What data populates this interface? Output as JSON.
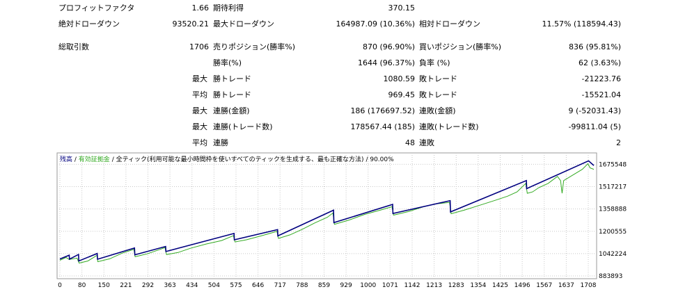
{
  "stats": {
    "profit_factor": {
      "label": "プロフィットファクタ",
      "value": "1.66"
    },
    "expected_payoff": {
      "label": "期待利得",
      "value": "370.15"
    },
    "abs_drawdown": {
      "label": "絶対ドローダウン",
      "value": "93520.21"
    },
    "max_drawdown": {
      "label": "最大ドローダウン",
      "value": "164987.09 (10.36%)"
    },
    "rel_drawdown": {
      "label": "相対ドローダウン",
      "value": "11.57% (118594.43)"
    },
    "total_trades": {
      "label": "総取引数",
      "value": "1706"
    },
    "short_positions": {
      "label": "売りポジション(勝率%)",
      "value": "870 (96.90%)"
    },
    "long_positions": {
      "label": "買いポジション(勝率%)",
      "value": "836 (95.81%)"
    },
    "win_rate": {
      "label": "勝率(%)",
      "value": "1644 (96.37%)"
    },
    "loss_rate": {
      "label": "負率 (%)",
      "value": "62 (3.63%)"
    },
    "max_win": {
      "prefix": "最大",
      "label": "勝トレード",
      "value": "1080.59"
    },
    "max_loss": {
      "label": "敗トレード",
      "value": "-21223.76"
    },
    "avg_win": {
      "prefix": "平均",
      "label": "勝トレード",
      "value": "969.45"
    },
    "avg_loss": {
      "label": "敗トレード",
      "value": "-15521.04"
    },
    "max_consec_wins_amount": {
      "prefix": "最大",
      "label": "連勝(金額)",
      "value": "186 (176697.52)"
    },
    "max_consec_losses_amount": {
      "label": "連敗(金額)",
      "value": "9 (-52031.43)"
    },
    "max_consec_wins_trades": {
      "prefix": "最大",
      "label": "連勝(トレード数)",
      "value": "178567.44 (185)"
    },
    "max_consec_losses_trades": {
      "label": "連敗(トレード数)",
      "value": "-99811.04 (5)"
    },
    "avg_consec_wins": {
      "prefix": "平均",
      "label": "連勝",
      "value": "48"
    },
    "avg_consec_losses": {
      "label": "連敗",
      "value": "2"
    }
  },
  "chart_data": {
    "type": "line",
    "legend": {
      "balance": "残高",
      "sep1": " / ",
      "equity": "有効証拠金",
      "sep2": " / ",
      "mode": "全ティック(利用可能な最小時間枠を使いすべてのティックを生成する、最も正確な方法)",
      "sep3": " / ",
      "quality": "90.00%"
    },
    "x_ticks": [
      "0",
      "80",
      "150",
      "221",
      "292",
      "363",
      "434",
      "504",
      "575",
      "646",
      "717",
      "788",
      "859",
      "929",
      "1000",
      "1071",
      "1142",
      "1213",
      "1283",
      "1354",
      "1425",
      "1496",
      "1567",
      "1637",
      "1708"
    ],
    "y_ticks": [
      "1675548",
      "1517217",
      "1358888",
      "1200555",
      "1042224",
      "883893"
    ],
    "ylim": [
      883893,
      1717000
    ],
    "xlim": [
      0,
      1717
    ],
    "colors": {
      "balance": "#00007f",
      "equity": "#33aa22",
      "grid": "#c8c8c8"
    },
    "balance_points": [
      [
        0,
        1004000
      ],
      [
        30,
        1031000
      ],
      [
        31,
        1003000
      ],
      [
        60,
        1036000
      ],
      [
        61,
        990000
      ],
      [
        120,
        1043000
      ],
      [
        121,
        1002000
      ],
      [
        240,
        1082000
      ],
      [
        241,
        1034000
      ],
      [
        340,
        1093000
      ],
      [
        341,
        1057000
      ],
      [
        560,
        1185000
      ],
      [
        561,
        1140000
      ],
      [
        700,
        1212000
      ],
      [
        701,
        1168000
      ],
      [
        880,
        1350000
      ],
      [
        881,
        1262000
      ],
      [
        1070,
        1391000
      ],
      [
        1071,
        1327000
      ],
      [
        1255,
        1418000
      ],
      [
        1256,
        1338000
      ],
      [
        1500,
        1560000
      ],
      [
        1501,
        1503000
      ],
      [
        1700,
        1700000
      ],
      [
        1717,
        1667000
      ]
    ],
    "equity_points": [
      [
        0,
        995000
      ],
      [
        20,
        1015000
      ],
      [
        30,
        1000000
      ],
      [
        55,
        1010000
      ],
      [
        62,
        975000
      ],
      [
        90,
        990000
      ],
      [
        119,
        1030000
      ],
      [
        122,
        985000
      ],
      [
        160,
        1005000
      ],
      [
        200,
        1045000
      ],
      [
        238,
        1072000
      ],
      [
        242,
        1020000
      ],
      [
        280,
        1040000
      ],
      [
        320,
        1070000
      ],
      [
        338,
        1085000
      ],
      [
        343,
        1035000
      ],
      [
        380,
        1050000
      ],
      [
        420,
        1080000
      ],
      [
        470,
        1110000
      ],
      [
        520,
        1135000
      ],
      [
        558,
        1170000
      ],
      [
        563,
        1125000
      ],
      [
        600,
        1140000
      ],
      [
        650,
        1170000
      ],
      [
        698,
        1200000
      ],
      [
        703,
        1150000
      ],
      [
        740,
        1175000
      ],
      [
        780,
        1215000
      ],
      [
        820,
        1260000
      ],
      [
        860,
        1300000
      ],
      [
        878,
        1330000
      ],
      [
        883,
        1250000
      ],
      [
        930,
        1280000
      ],
      [
        980,
        1320000
      ],
      [
        1030,
        1350000
      ],
      [
        1068,
        1375000
      ],
      [
        1073,
        1315000
      ],
      [
        1120,
        1340000
      ],
      [
        1170,
        1375000
      ],
      [
        1210,
        1395000
      ],
      [
        1253,
        1405000
      ],
      [
        1258,
        1325000
      ],
      [
        1300,
        1350000
      ],
      [
        1350,
        1385000
      ],
      [
        1400,
        1420000
      ],
      [
        1440,
        1450000
      ],
      [
        1470,
        1480000
      ],
      [
        1498,
        1540000
      ],
      [
        1503,
        1470000
      ],
      [
        1520,
        1480000
      ],
      [
        1540,
        1510000
      ],
      [
        1570,
        1540000
      ],
      [
        1600,
        1590000
      ],
      [
        1610,
        1560000
      ],
      [
        1615,
        1470000
      ],
      [
        1620,
        1560000
      ],
      [
        1650,
        1600000
      ],
      [
        1680,
        1640000
      ],
      [
        1698,
        1680000
      ],
      [
        1705,
        1650000
      ],
      [
        1717,
        1640000
      ]
    ]
  }
}
